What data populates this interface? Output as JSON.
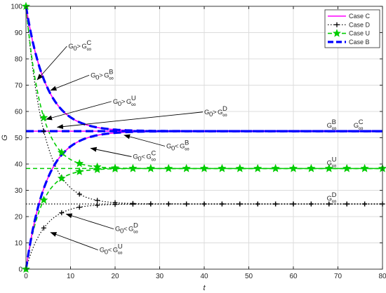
{
  "chart_data": {
    "type": "line",
    "xlabel": "t",
    "ylabel": "G",
    "xlim": [
      0,
      80
    ],
    "ylim": [
      0,
      100
    ],
    "xticks": [
      0,
      10,
      20,
      30,
      40,
      50,
      60,
      70,
      80
    ],
    "yticks": [
      0,
      10,
      20,
      30,
      40,
      50,
      60,
      70,
      80,
      90,
      100
    ],
    "grid": true,
    "legend_position": "top-right",
    "colors": {
      "case_c": "#ff00ff",
      "case_d": "#000000",
      "case_u": "#00cc00",
      "case_b": "#0000ff",
      "frame": "#262626",
      "grid": "#dcdcdc"
    },
    "series": [
      {
        "name": "Case C",
        "style": "solid",
        "marker": "none",
        "equilibrium": 52.5,
        "rate": 0.22,
        "starts": [
          100,
          0
        ],
        "values_note": ""
      },
      {
        "name": "Case D",
        "style": "dotted",
        "marker": "plus",
        "equilibrium": 24.8,
        "rate": 0.25,
        "starts": [
          100,
          0
        ]
      },
      {
        "name": "Case U",
        "style": "dashed",
        "marker": "star",
        "equilibrium": 38.3,
        "rate": 0.29,
        "starts": [
          100,
          0
        ]
      },
      {
        "name": "Case B",
        "style": "thick-dashed",
        "marker": "none",
        "equilibrium": 52.5,
        "rate": 0.22,
        "starts": [
          100,
          0
        ]
      }
    ],
    "equilibrium_labels": {
      "b": {
        "base": "G",
        "sup": "B",
        "sub": "∞",
        "value": 52.5,
        "x": 67.5
      },
      "c": {
        "base": "G",
        "sup": "C",
        "sub": "∞",
        "value": 52.5,
        "x": 73.5
      },
      "u": {
        "base": "G",
        "sup": "U",
        "sub": "∞",
        "value": 38.3,
        "x": 67.5
      },
      "d": {
        "base": "G",
        "sup": "D",
        "sub": "∞",
        "value": 24.8,
        "x": 67.5
      }
    },
    "annotations": [
      {
        "name": "g0-gt-gc",
        "text": "G",
        "sub0": "0",
        "rel": ">",
        "base2": "G",
        "sup": "C",
        "sub": "∞",
        "text_at": [
          9.5,
          84
        ],
        "arrow_to": [
          2.5,
          72
        ]
      },
      {
        "name": "g0-gt-gb",
        "text": "G",
        "sub0": "0",
        "rel": ">",
        "base2": "G",
        "sup": "B",
        "sub": "∞",
        "text_at": [
          14.5,
          73
        ],
        "arrow_to": [
          5.5,
          68
        ]
      },
      {
        "name": "g0-gt-gu",
        "text": "G",
        "sub0": "0",
        "rel": ">",
        "base2": "G",
        "sup": "U",
        "sub": "∞",
        "text_at": [
          19.5,
          63
        ],
        "arrow_to": [
          4.5,
          57
        ]
      },
      {
        "name": "g0-gt-gd",
        "text": "G",
        "sub0": "0",
        "rel": ">",
        "base2": "G",
        "sup": "D",
        "sub": "∞",
        "text_at": [
          40,
          59
        ],
        "arrow_to": [
          7,
          54
        ]
      },
      {
        "name": "g0-lt-gb",
        "text": "G",
        "sub0": "0",
        "rel": "<",
        "base2": "G",
        "sup": "B",
        "sub": "∞",
        "text_at": [
          31.5,
          46
        ],
        "arrow_to": [
          22,
          51
        ]
      },
      {
        "name": "g0-lt-gc",
        "text": "G",
        "sub0": "0",
        "rel": "<",
        "base2": "G",
        "sup": "C",
        "sub": "∞",
        "text_at": [
          24,
          42
        ],
        "arrow_to": [
          14.5,
          46
        ]
      },
      {
        "name": "g0-lt-gd",
        "text": "G",
        "sub0": "0",
        "rel": "<",
        "base2": "G",
        "sup": "D",
        "sub": "∞",
        "text_at": [
          20,
          14.5
        ],
        "arrow_to": [
          9,
          21
        ]
      },
      {
        "name": "g0-lt-gu",
        "text": "G",
        "sub0": "0",
        "rel": "<",
        "base2": "G",
        "sup": "U",
        "sub": "∞",
        "text_at": [
          16.5,
          6.5
        ],
        "arrow_to": [
          5.5,
          14
        ]
      }
    ]
  }
}
